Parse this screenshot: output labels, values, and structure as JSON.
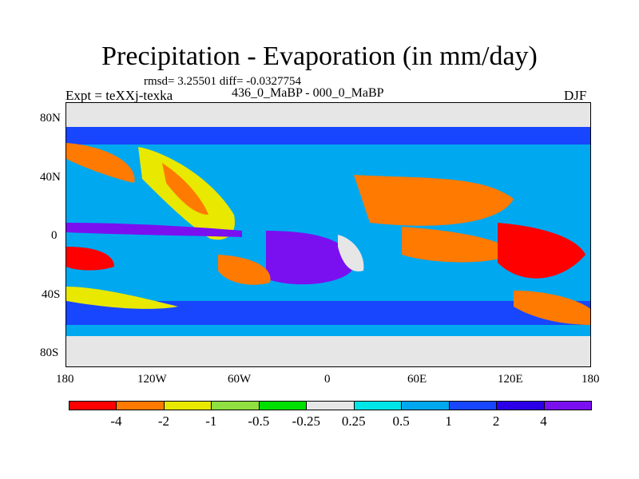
{
  "header": {
    "title": "Precipitation - Evaporation (in mm/day)",
    "stats": "rmsd= 3.25501 diff= -0.0327754",
    "experiment": "Expt = teXXj-texka",
    "period": "436_0_MaBP - 000_0_MaBP",
    "season": "DJF"
  },
  "axes": {
    "y_ticks": [
      "80N",
      "40N",
      "0",
      "40S",
      "80S"
    ],
    "x_ticks": [
      "180",
      "120W",
      "60W",
      "0",
      "60E",
      "120E",
      "180"
    ]
  },
  "colorbar": {
    "levels": [
      "-4",
      "-2",
      "-1",
      "-0.5",
      "-0.25",
      "0.25",
      "0.5",
      "1",
      "2",
      "4"
    ],
    "colors": [
      "#ff0000",
      "#ff7a00",
      "#e8e800",
      "#8fe040",
      "#00e000",
      "#e6e6e6",
      "#00e5e5",
      "#00a8f0",
      "#1846ff",
      "#2b00e8",
      "#7a10f0"
    ]
  }
}
